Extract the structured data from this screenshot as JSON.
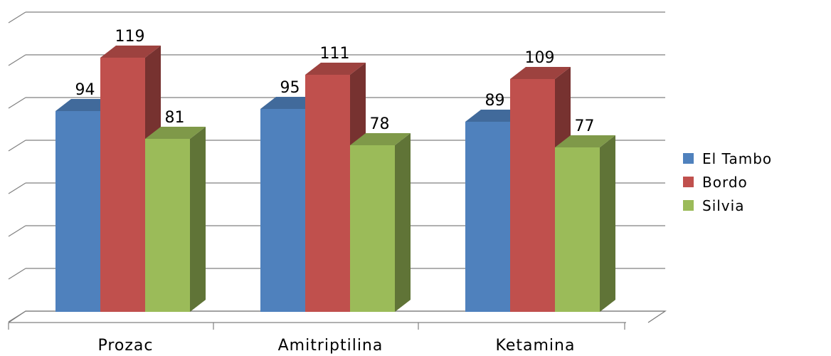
{
  "chart_data": {
    "type": "bar",
    "categories": [
      "Prozac",
      "Amitriptilina",
      "Ketamina"
    ],
    "series": [
      {
        "name": "El Tambo",
        "values": [
          94,
          95,
          89
        ],
        "color": "#4F81BD"
      },
      {
        "name": "Bordo",
        "values": [
          119,
          111,
          109
        ],
        "color": "#C0504D"
      },
      {
        "name": "Silvia",
        "values": [
          81,
          78,
          77
        ],
        "color": "#9BBB59"
      }
    ],
    "title": "",
    "xlabel": "",
    "ylabel": "",
    "ylim": [
      0,
      140
    ],
    "grid": true,
    "legend": "right",
    "three_d": true
  }
}
